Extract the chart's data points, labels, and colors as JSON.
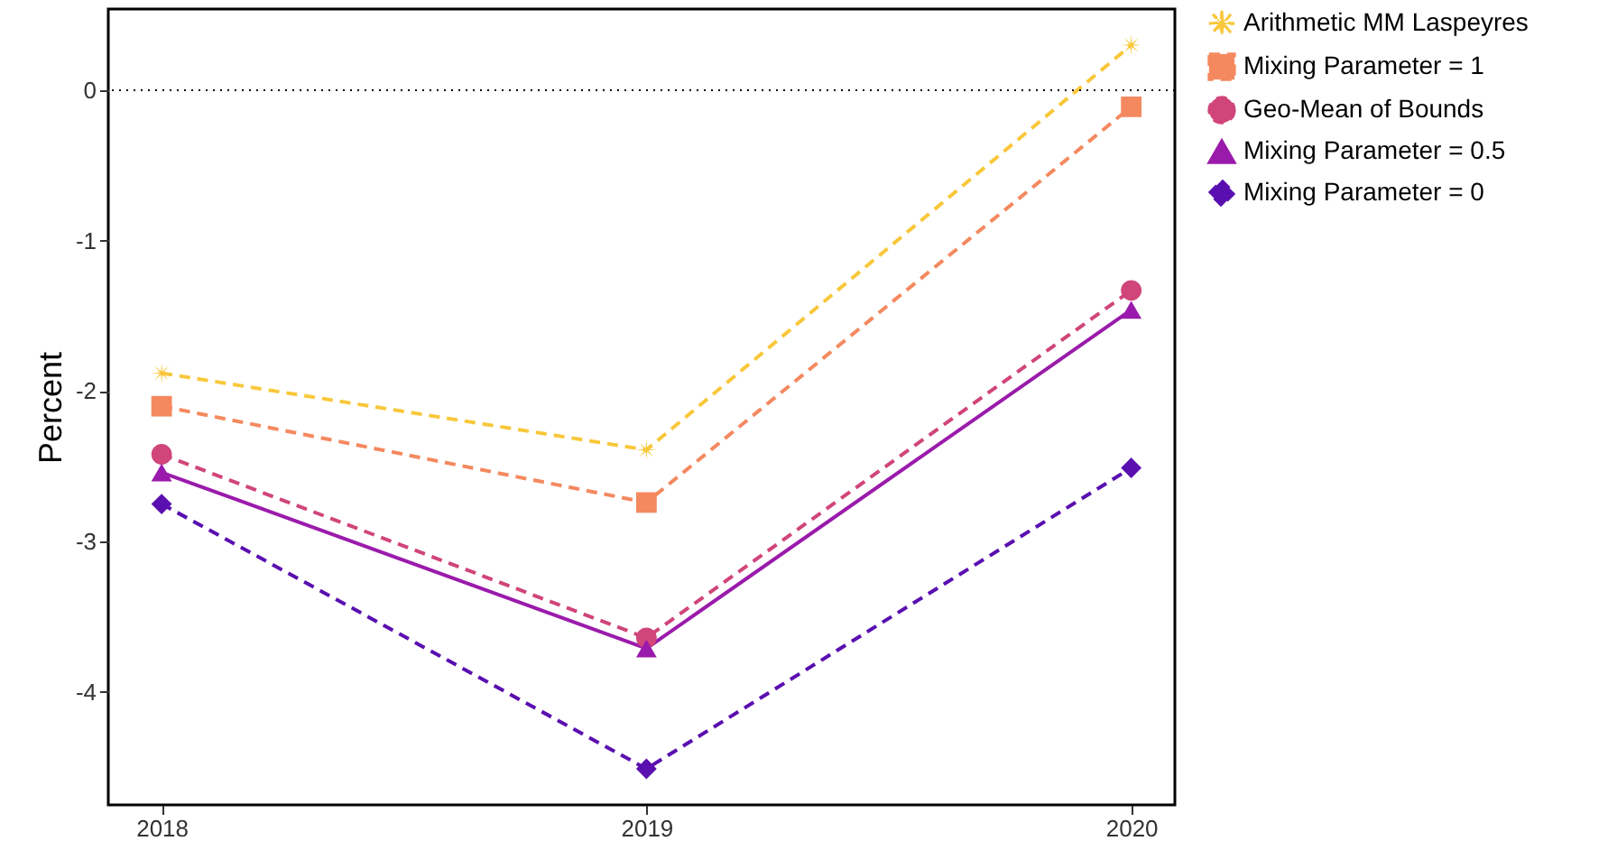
{
  "chart_data": {
    "type": "line",
    "ylabel": "Percent",
    "x": [
      2018,
      2019,
      2020
    ],
    "xlim": [
      2017.89,
      2020.09
    ],
    "xticks": [
      2018,
      2019,
      2020
    ],
    "ylim": [
      -4.75,
      0.54
    ],
    "yticks": [
      -4,
      -3,
      -2,
      -1,
      0
    ],
    "grid": false,
    "legend": "right",
    "ref_lines": [
      {
        "axis": "y",
        "value": 0,
        "color": "#000000",
        "line_style": "dotted"
      }
    ],
    "series": [
      {
        "name": "Arithmetic MM Laspeyres",
        "color": "#f9c73a",
        "marker": "star",
        "line_style": "dashed",
        "values": [
          -1.88,
          -2.39,
          0.3
        ]
      },
      {
        "name": "Mixing Parameter = 1",
        "color": "#f4895f",
        "marker": "square",
        "line_style": "dashed",
        "values": [
          -2.1,
          -2.74,
          -0.11
        ]
      },
      {
        "name": "Geo-Mean of Bounds",
        "color": "#d0457a",
        "marker": "circle",
        "line_style": "dashed",
        "values": [
          -2.42,
          -3.64,
          -1.33
        ]
      },
      {
        "name": "Mixing Parameter = 0.5",
        "color": "#9a1bab",
        "marker": "triangle",
        "line_style": "solid",
        "values": [
          -2.54,
          -3.71,
          -1.46
        ]
      },
      {
        "name": "Mixing Parameter = 0",
        "color": "#5a0fb0",
        "marker": "diamond",
        "line_style": "dashed",
        "values": [
          -2.75,
          -4.51,
          -2.51
        ]
      }
    ]
  }
}
